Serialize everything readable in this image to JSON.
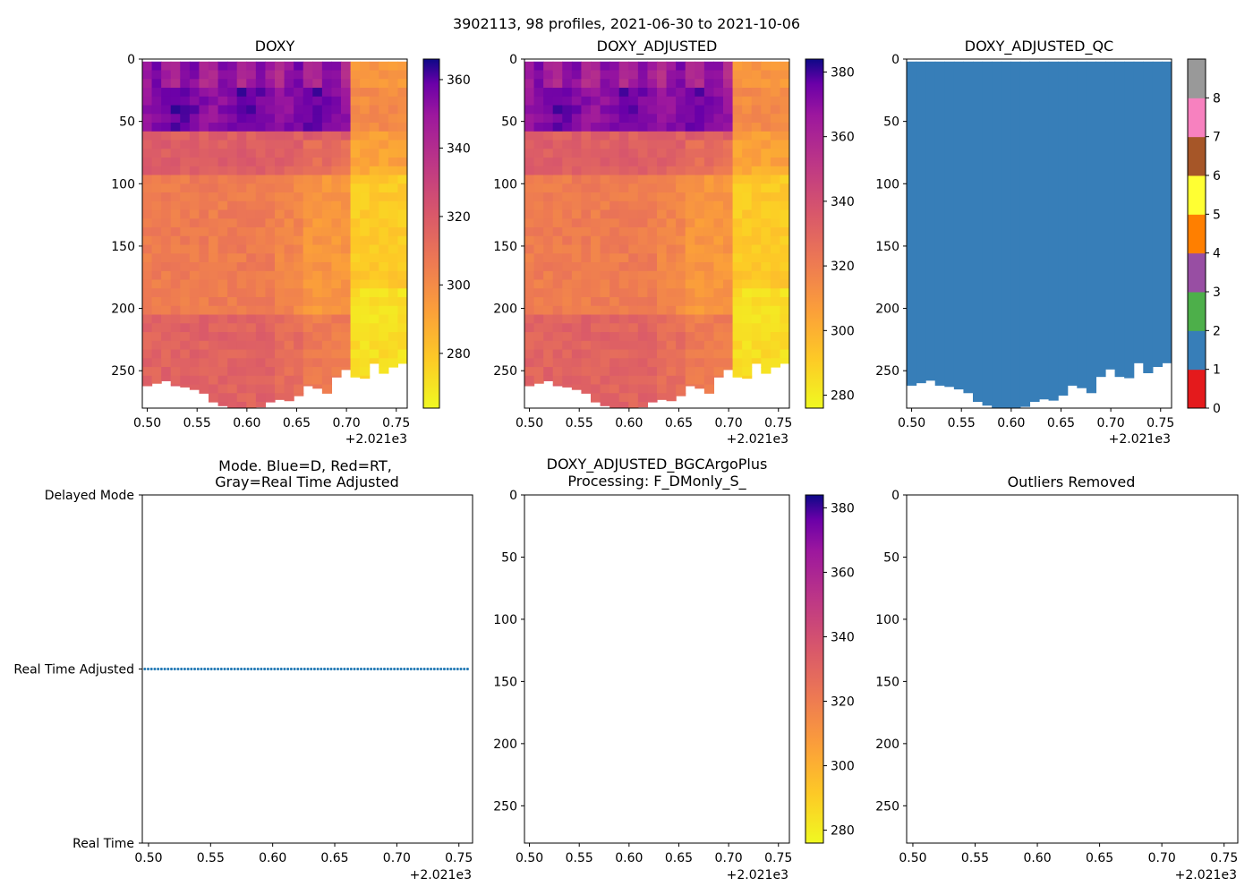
{
  "figure": {
    "suptitle": "3902113, 98 profiles, 2021-06-30 to 2021-10-06",
    "x_offset_label": "+2.021e3"
  },
  "colors": {
    "mode_marker": "#1f77b4",
    "qc_fill": "#377eb8"
  },
  "chart_data": [
    {
      "id": "doxy",
      "type": "heatmap",
      "title": "DOXY",
      "xlim": [
        0.495,
        0.761
      ],
      "ylim": [
        280,
        0
      ],
      "xticks": [
        "0.50",
        "0.55",
        "0.60",
        "0.65",
        "0.70",
        "0.75"
      ],
      "yticks": [
        "0",
        "50",
        "100",
        "150",
        "200",
        "250"
      ],
      "colormap": "plasma_r",
      "colorbar": {
        "min": 264,
        "max": 366,
        "ticks": [
          "280",
          "300",
          "320",
          "340",
          "360"
        ],
        "tick_values": [
          280,
          300,
          320,
          340,
          360
        ]
      },
      "max_depth": [
        262,
        260,
        258,
        262,
        263,
        265,
        268,
        275,
        278,
        280,
        281,
        280,
        279,
        275,
        273,
        274,
        270,
        262,
        264,
        268,
        255,
        249,
        255,
        256,
        244,
        252,
        247,
        244
      ]
    },
    {
      "id": "doxy_adjusted",
      "type": "heatmap",
      "title": "DOXY_ADJUSTED",
      "xlim": [
        0.495,
        0.761
      ],
      "ylim": [
        280,
        0
      ],
      "xticks": [
        "0.50",
        "0.55",
        "0.60",
        "0.65",
        "0.70",
        "0.75"
      ],
      "yticks": [
        "0",
        "50",
        "100",
        "150",
        "200",
        "250"
      ],
      "colormap": "plasma_r",
      "colorbar": {
        "min": 276,
        "max": 384,
        "ticks": [
          "280",
          "300",
          "320",
          "340",
          "360",
          "380"
        ],
        "tick_values": [
          280,
          300,
          320,
          340,
          360,
          380
        ]
      },
      "max_depth": [
        262,
        260,
        258,
        262,
        263,
        265,
        268,
        275,
        278,
        280,
        281,
        280,
        279,
        275,
        273,
        274,
        270,
        262,
        264,
        268,
        255,
        249,
        255,
        256,
        244,
        252,
        247,
        244
      ]
    },
    {
      "id": "doxy_adjusted_qc",
      "type": "heatmap",
      "title": "DOXY_ADJUSTED_QC",
      "xlim": [
        0.495,
        0.761
      ],
      "ylim": [
        280,
        0
      ],
      "xticks": [
        "0.50",
        "0.55",
        "0.60",
        "0.65",
        "0.70",
        "0.75"
      ],
      "yticks": [
        "0",
        "50",
        "100",
        "150",
        "200",
        "250"
      ],
      "qc_value": 1,
      "colorbar": {
        "ticks": [
          "0",
          "1",
          "2",
          "3",
          "4",
          "5",
          "6",
          "7",
          "8"
        ],
        "colors": [
          "#e41a1c",
          "#377eb8",
          "#4daf4a",
          "#984ea3",
          "#ff7f00",
          "#ffff33",
          "#a65628",
          "#f781bf",
          "#999999"
        ]
      },
      "max_depth": [
        262,
        260,
        258,
        262,
        263,
        265,
        268,
        275,
        278,
        280,
        281,
        280,
        279,
        275,
        273,
        274,
        270,
        262,
        264,
        268,
        255,
        249,
        255,
        256,
        244,
        252,
        247,
        244
      ]
    },
    {
      "id": "mode",
      "type": "scatter",
      "title": "Mode. Blue=D, Red=RT,\nGray=Real Time Adjusted",
      "title_lines": [
        "Mode. Blue=D, Red=RT,",
        "Gray=Real Time Adjusted"
      ],
      "xlim": [
        0.495,
        0.761
      ],
      "xticks": [
        "0.50",
        "0.55",
        "0.60",
        "0.65",
        "0.70",
        "0.75"
      ],
      "yticks": [
        "Delayed Mode",
        "Real Time Adjusted",
        "Real Time"
      ],
      "y_tick_values": [
        2,
        1,
        0
      ],
      "series": [
        {
          "name": "Real Time Adjusted",
          "y": 1,
          "x_start": 0.497,
          "x_end": 0.757,
          "count": 98
        }
      ]
    },
    {
      "id": "bgcargoplus",
      "type": "heatmap",
      "title": "DOXY_ADJUSTED_BGCArgoPlus\nProcessing: F_DMonly_S_",
      "title_lines": [
        "DOXY_ADJUSTED_BGCArgoPlus",
        "Processing: F_DMonly_S_"
      ],
      "xlim": [
        0.495,
        0.761
      ],
      "ylim": [
        280,
        0
      ],
      "xticks": [
        "0.50",
        "0.55",
        "0.60",
        "0.65",
        "0.70",
        "0.75"
      ],
      "yticks": [
        "0",
        "50",
        "100",
        "150",
        "200",
        "250"
      ],
      "colormap": "plasma_r",
      "colorbar": {
        "min": 276,
        "max": 384,
        "ticks": [
          "280",
          "300",
          "320",
          "340",
          "360",
          "380"
        ],
        "tick_values": [
          280,
          300,
          320,
          340,
          360,
          380
        ]
      }
    },
    {
      "id": "outliers",
      "type": "heatmap",
      "title": "Outliers Removed",
      "xlim": [
        0.495,
        0.761
      ],
      "ylim": [
        280,
        0
      ],
      "xticks": [
        "0.50",
        "0.55",
        "0.60",
        "0.65",
        "0.70",
        "0.75"
      ],
      "yticks": [
        "0",
        "50",
        "100",
        "150",
        "200",
        "250"
      ]
    }
  ]
}
